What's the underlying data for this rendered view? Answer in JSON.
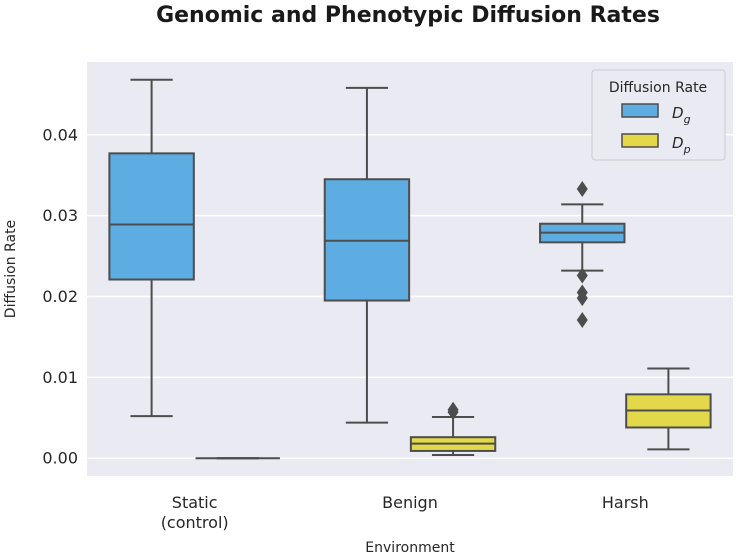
{
  "chart_data": {
    "type": "box",
    "title": "Genomic and Phenotypic Diffusion Rates",
    "xlabel": "Environment",
    "ylabel": "Diffusion Rate",
    "ylim": [
      -0.0022,
      0.049
    ],
    "yticks": [
      0.0,
      0.01,
      0.02,
      0.03,
      0.04
    ],
    "ytick_labels": [
      "0.00",
      "0.01",
      "0.02",
      "0.03",
      "0.04"
    ],
    "categories": [
      {
        "line1": "Static",
        "line2": "(control)"
      },
      {
        "line1": "Benign",
        "line2": ""
      },
      {
        "line1": "Harsh",
        "line2": ""
      }
    ],
    "legend": {
      "title": "Diffusion Rate",
      "position": "top-right",
      "entries": [
        {
          "main": "D",
          "sub": "g"
        },
        {
          "main": "D",
          "sub": "p"
        }
      ]
    },
    "series": [
      {
        "name": "D_g",
        "color": "#5dade2",
        "boxes": [
          {
            "whislo": 0.0052,
            "q1": 0.0221,
            "med": 0.0289,
            "q3": 0.0377,
            "whishi": 0.0468,
            "fliers": []
          },
          {
            "whislo": 0.0044,
            "q1": 0.0195,
            "med": 0.0269,
            "q3": 0.0345,
            "whishi": 0.0458,
            "fliers": []
          },
          {
            "whislo": 0.0232,
            "q1": 0.0267,
            "med": 0.0279,
            "q3": 0.029,
            "whishi": 0.0314,
            "fliers": [
              0.0333,
              0.0226,
              0.0205,
              0.0198,
              0.0171
            ]
          }
        ]
      },
      {
        "name": "D_p",
        "color": "#e2d84a",
        "boxes": [
          {
            "whislo": 0.0,
            "q1": 0.0,
            "med": 0.0,
            "q3": 0.0,
            "whishi": 0.0,
            "fliers": []
          },
          {
            "whislo": 0.0004,
            "q1": 0.0009,
            "med": 0.0018,
            "q3": 0.0026,
            "whishi": 0.0051,
            "fliers": [
              0.0057,
              0.006
            ]
          },
          {
            "whislo": 0.0011,
            "q1": 0.0038,
            "med": 0.0059,
            "q3": 0.0079,
            "whishi": 0.0111,
            "fliers": []
          }
        ]
      }
    ]
  }
}
